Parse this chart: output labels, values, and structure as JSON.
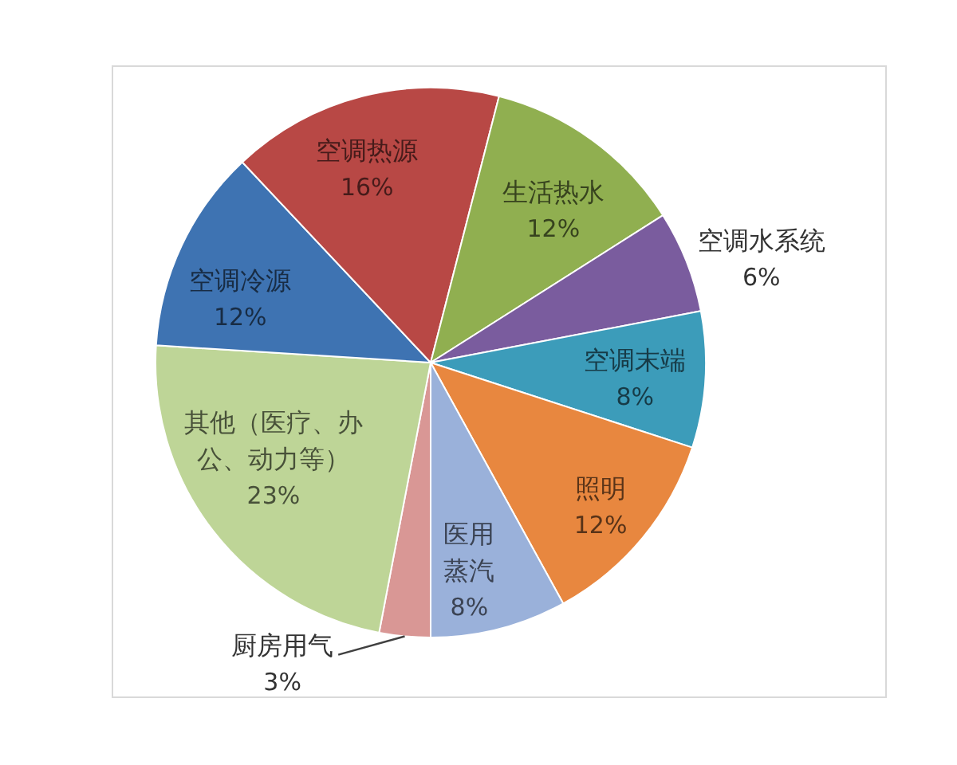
{
  "chart_data": {
    "type": "pie",
    "categories": [
      "厨房用气",
      "其他（医疗、办公、动力等）",
      "空调冷源",
      "空调热源",
      "生活热水",
      "空调水系统",
      "空调末端",
      "照明",
      "医用蒸汽"
    ],
    "values": [
      3,
      23,
      12,
      16,
      12,
      6,
      8,
      12,
      8
    ],
    "value_labels": [
      "3%",
      "23%",
      "12%",
      "16%",
      "12%",
      "6%",
      "8%",
      "12%",
      "8%"
    ],
    "colors": [
      "#d99795",
      "#bed597",
      "#3e73b2",
      "#b84845",
      "#90af50",
      "#7a5c9e",
      "#3c9cba",
      "#e8873f",
      "#9ab1da"
    ]
  }
}
